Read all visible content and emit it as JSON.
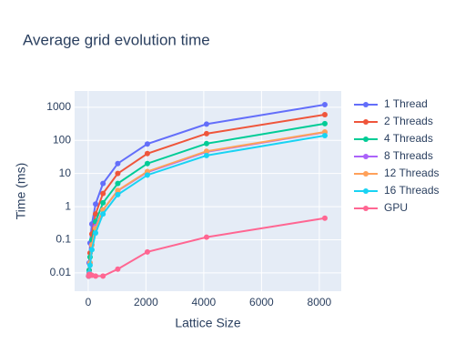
{
  "chart_data": {
    "type": "line",
    "title": "Average grid evolution time",
    "xlabel": "Lattice Size",
    "ylabel": "Time (ms)",
    "x": [
      16,
      32,
      64,
      128,
      256,
      512,
      1024,
      2048,
      4096,
      8192
    ],
    "series": [
      {
        "name": "1 Thread",
        "color": "#636efa",
        "values": [
          0.008,
          0.02,
          0.08,
          0.3,
          1.2,
          5,
          20,
          78,
          310,
          1200
        ]
      },
      {
        "name": "2 Threads",
        "color": "#ef553b",
        "values": [
          0.008,
          0.012,
          0.04,
          0.15,
          0.6,
          2.5,
          10,
          40,
          160,
          600
        ]
      },
      {
        "name": "4 Threads",
        "color": "#00cc96",
        "values": [
          0.008,
          0.012,
          0.03,
          0.1,
          0.35,
          1.3,
          5,
          20,
          80,
          320
        ]
      },
      {
        "name": "8 Threads",
        "color": "#ab63fa",
        "values": [
          0.008,
          0.01,
          0.02,
          0.07,
          0.25,
          0.8,
          3,
          11,
          45,
          175
        ]
      },
      {
        "name": "12 Threads",
        "color": "#ffa15a",
        "values": [
          0.008,
          0.01,
          0.02,
          0.07,
          0.22,
          0.8,
          3.1,
          11.5,
          47,
          180
        ]
      },
      {
        "name": "16 Threads",
        "color": "#19d3f3",
        "values": [
          0.008,
          0.01,
          0.017,
          0.05,
          0.16,
          0.6,
          2.3,
          9,
          35,
          140
        ]
      },
      {
        "name": "GPU",
        "color": "#ff6692",
        "values": [
          0.008,
          0.009,
          0.009,
          0.0085,
          0.008,
          0.008,
          0.013,
          0.043,
          0.12,
          0.45
        ]
      }
    ],
    "xlim": [
      -470,
      8760
    ],
    "ylim": [
      0.0028,
      3100
    ],
    "xticks": [
      0,
      2000,
      4000,
      6000,
      8000
    ],
    "yticks": [
      0.01,
      0.1,
      1,
      10,
      100,
      1000
    ],
    "ylog": true,
    "grid": true,
    "legend_position": "right"
  }
}
